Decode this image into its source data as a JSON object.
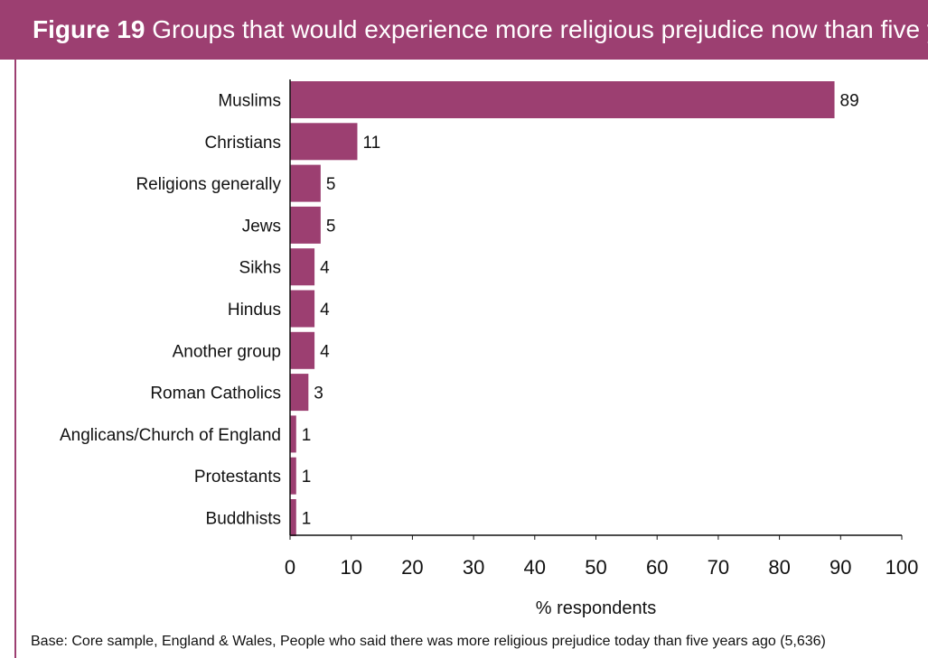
{
  "header": {
    "figure_label": "Figure 19",
    "title": "Groups that would experience more religious prejudice now than five years ago"
  },
  "footnote": "Base: Core sample, England & Wales, People who said there was more religious prejudice today than five years ago (5,636)",
  "colors": {
    "bar": "#9c3f71",
    "header_bg": "#9c3f71",
    "axis": "#111111"
  },
  "chart_data": {
    "type": "bar",
    "orientation": "horizontal",
    "title": "Groups that would experience more religious prejudice now than five years ago",
    "xlabel": "% respondents",
    "ylabel": "",
    "xlim": [
      0,
      100
    ],
    "xticks": [
      0,
      10,
      20,
      30,
      40,
      50,
      60,
      70,
      80,
      90,
      100
    ],
    "grid": false,
    "categories": [
      "Muslims",
      "Christians",
      "Religions generally",
      "Jews",
      "Sikhs",
      "Hindus",
      "Another group",
      "Roman Catholics",
      "Anglicans/Church of England",
      "Protestants",
      "Buddhists"
    ],
    "values": [
      89,
      11,
      5,
      5,
      4,
      4,
      4,
      3,
      1,
      1,
      1
    ]
  }
}
